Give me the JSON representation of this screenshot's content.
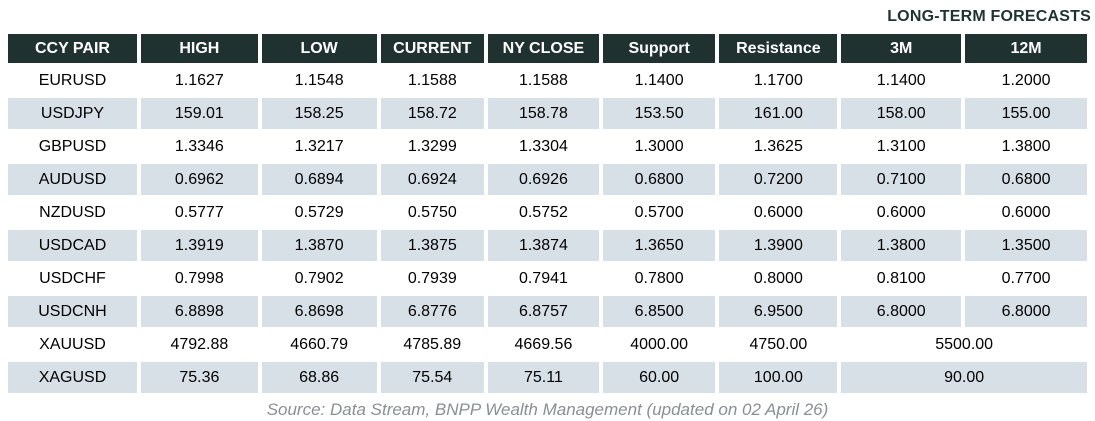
{
  "title": "LONG-TERM FORECASTS",
  "source": "Source: Data Stream, BNPP Wealth Management (updated on 02 April 26)",
  "colors": {
    "header_bg": "#203230",
    "row_alt_bg": "#d7e0e7",
    "title_text": "#1f3331",
    "source_text": "#8b8f92"
  },
  "table": {
    "headers": [
      {
        "key": "pair",
        "label": "CCY PAIR"
      },
      {
        "key": "high",
        "label": "HIGH"
      },
      {
        "key": "low",
        "label": "LOW"
      },
      {
        "key": "current",
        "label": "CURRENT"
      },
      {
        "key": "ny_close",
        "label": "NY CLOSE"
      },
      {
        "key": "support",
        "label": "Support"
      },
      {
        "key": "resistance",
        "label": "Resistance"
      },
      {
        "key": "m3",
        "label": "3M"
      },
      {
        "key": "m12",
        "label": "12M"
      }
    ],
    "rows": [
      {
        "pair": "EURUSD",
        "high": "1.1627",
        "low": "1.1548",
        "current": "1.1588",
        "ny_close": "1.1588",
        "support": "1.1400",
        "resistance": "1.1700",
        "m3": "1.1400",
        "m12": "1.2000"
      },
      {
        "pair": "USDJPY",
        "high": "159.01",
        "low": "158.25",
        "current": "158.72",
        "ny_close": "158.78",
        "support": "153.50",
        "resistance": "161.00",
        "m3": "158.00",
        "m12": "155.00"
      },
      {
        "pair": "GBPUSD",
        "high": "1.3346",
        "low": "1.3217",
        "current": "1.3299",
        "ny_close": "1.3304",
        "support": "1.3000",
        "resistance": "1.3625",
        "m3": "1.3100",
        "m12": "1.3800"
      },
      {
        "pair": "AUDUSD",
        "high": "0.6962",
        "low": "0.6894",
        "current": "0.6924",
        "ny_close": "0.6926",
        "support": "0.6800",
        "resistance": "0.7200",
        "m3": "0.7100",
        "m12": "0.6800"
      },
      {
        "pair": "NZDUSD",
        "high": "0.5777",
        "low": "0.5729",
        "current": "0.5750",
        "ny_close": "0.5752",
        "support": "0.5700",
        "resistance": "0.6000",
        "m3": "0.6000",
        "m12": "0.6000"
      },
      {
        "pair": "USDCAD",
        "high": "1.3919",
        "low": "1.3870",
        "current": "1.3875",
        "ny_close": "1.3874",
        "support": "1.3650",
        "resistance": "1.3900",
        "m3": "1.3800",
        "m12": "1.3500"
      },
      {
        "pair": "USDCHF",
        "high": "0.7998",
        "low": "0.7902",
        "current": "0.7939",
        "ny_close": "0.7941",
        "support": "0.7800",
        "resistance": "0.8000",
        "m3": "0.8100",
        "m12": "0.7700"
      },
      {
        "pair": "USDCNH",
        "high": "6.8898",
        "low": "6.8698",
        "current": "6.8776",
        "ny_close": "6.8757",
        "support": "6.8500",
        "resistance": "6.9500",
        "m3": "6.8000",
        "m12": "6.8000"
      },
      {
        "pair": "XAUUSD",
        "high": "4792.88",
        "low": "4660.79",
        "current": "4785.89",
        "ny_close": "4669.56",
        "support": "4000.00",
        "resistance": "4750.00",
        "m3_m12": "5500.00"
      },
      {
        "pair": "XAGUSD",
        "high": "75.36",
        "low": "68.86",
        "current": "75.54",
        "ny_close": "75.11",
        "support": "60.00",
        "resistance": "100.00",
        "m3_m12": "90.00"
      }
    ]
  }
}
